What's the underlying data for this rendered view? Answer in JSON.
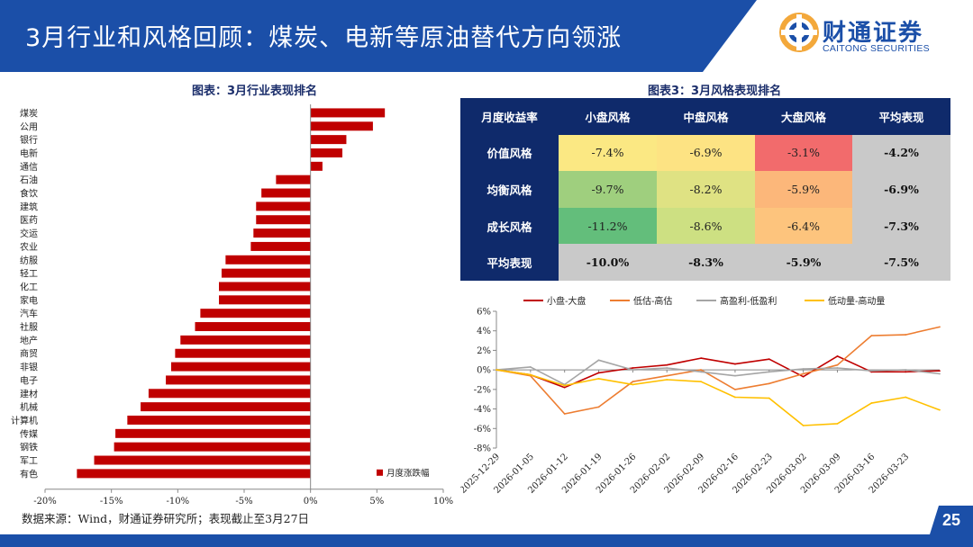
{
  "header": {
    "title": "3月行业和风格回顾：煤炭、电新等原油替代方向领涨",
    "logo_cn": "财通证券",
    "logo_en": "CAITONG SECURITIES"
  },
  "colors": {
    "brand": "#1b4fa8",
    "bar": "#c00000",
    "table_head": "#0f2a6b"
  },
  "industry_panel": {
    "title": "图表：3月行业表现排名"
  },
  "style_panel": {
    "title": "图表3：3月风格表现排名"
  },
  "style_table": {
    "corner": "月度收益率",
    "columns": [
      "小盘风格",
      "中盘风格",
      "大盘风格",
      "平均表现"
    ],
    "rows": [
      {
        "label": "价值风格",
        "values": [
          "-7.4%",
          "-6.9%",
          "-3.1%",
          "-4.2%"
        ],
        "colors": [
          "#fbe883",
          "#fde383",
          "#f26b6c"
        ]
      },
      {
        "label": "均衡风格",
        "values": [
          "-9.7%",
          "-8.2%",
          "-5.9%",
          "-6.9%"
        ],
        "colors": [
          "#9fcf7e",
          "#dfe283",
          "#fcb77a"
        ]
      },
      {
        "label": "成长风格",
        "values": [
          "-11.2%",
          "-8.6%",
          "-6.4%",
          "-7.3%"
        ],
        "colors": [
          "#63be7b",
          "#cde082",
          "#fdc47d"
        ]
      },
      {
        "label": "平均表现",
        "values": [
          "-10.0%",
          "-8.3%",
          "-5.9%",
          "-7.5%"
        ]
      }
    ]
  },
  "chart_data": [
    {
      "type": "bar",
      "orientation": "horizontal",
      "categories": [
        "煤炭",
        "公用",
        "银行",
        "电新",
        "通信",
        "石油",
        "食饮",
        "建筑",
        "医药",
        "交运",
        "农业",
        "纺服",
        "轻工",
        "化工",
        "家电",
        "汽车",
        "社服",
        "地产",
        "商贸",
        "非银",
        "电子",
        "建材",
        "机械",
        "计算机",
        "传媒",
        "钢铁",
        "军工",
        "有色"
      ],
      "series": [
        {
          "name": "月度涨跌幅",
          "values": [
            5.6,
            4.7,
            2.7,
            2.4,
            0.9,
            -2.6,
            -3.7,
            -4.1,
            -4.1,
            -4.3,
            -4.5,
            -6.4,
            -6.7,
            -6.9,
            -6.9,
            -8.3,
            -8.7,
            -9.8,
            -10.2,
            -10.5,
            -10.9,
            -12.2,
            -12.8,
            -13.8,
            -14.7,
            -14.8,
            -16.3,
            -17.6
          ]
        }
      ],
      "xlim": [
        -20,
        10
      ],
      "xticks": [
        "-20%",
        "-15%",
        "-10%",
        "-5%",
        "0%",
        "5%",
        "10%"
      ],
      "legend": "bottom-right"
    },
    {
      "type": "line",
      "x": [
        "2025-12-29",
        "2026-01-05",
        "2026-01-12",
        "2026-01-19",
        "2026-01-26",
        "2026-02-02",
        "2026-02-09",
        "2026-02-16",
        "2026-02-23",
        "2026-03-02",
        "2026-03-09",
        "2026-03-16",
        "2026-03-23",
        "2026-03-27"
      ],
      "xticks": [
        "2025-12-29",
        "2026-01-05",
        "2026-01-12",
        "2026-01-19",
        "2026-01-26",
        "2026-02-02",
        "2026-02-09",
        "2026-02-16",
        "2026-02-23",
        "2026-03-02",
        "2026-03-09",
        "2026-03-16",
        "2026-03-23"
      ],
      "ylim": [
        -8,
        6
      ],
      "yticks": [
        "6%",
        "4%",
        "2%",
        "0%",
        "-2%",
        "-4%",
        "-6%",
        "-8%"
      ],
      "legend": "top",
      "series": [
        {
          "name": "小盘-大盘",
          "color": "#c00000",
          "values": [
            0.0,
            -0.5,
            -1.8,
            -0.3,
            0.2,
            0.5,
            1.2,
            0.6,
            1.1,
            -0.7,
            1.4,
            -0.2,
            -0.2,
            -0.1
          ]
        },
        {
          "name": "低估-高估",
          "color": "#ed7d31",
          "values": [
            0.0,
            -0.6,
            -4.5,
            -3.8,
            -1.2,
            -0.6,
            0.0,
            -2.0,
            -1.4,
            -0.4,
            0.5,
            3.5,
            3.6,
            4.4
          ]
        },
        {
          "name": "高盈利-低盈利",
          "color": "#a5a5a5",
          "values": [
            0.0,
            0.3,
            -1.5,
            1.0,
            0.0,
            0.2,
            -0.2,
            -0.6,
            -0.2,
            0.1,
            0.2,
            -0.1,
            0.0,
            -0.4
          ]
        },
        {
          "name": "低动量-高动量",
          "color": "#ffc000",
          "values": [
            0.0,
            -0.5,
            -1.6,
            -0.9,
            -1.5,
            -1.0,
            -1.2,
            -2.8,
            -2.9,
            -5.7,
            -5.5,
            -3.4,
            -2.8,
            -4.1
          ]
        }
      ]
    }
  ],
  "footer": {
    "source": "数据来源：Wind，财通证券研究所；表现截止至3月27日",
    "page": "25"
  }
}
